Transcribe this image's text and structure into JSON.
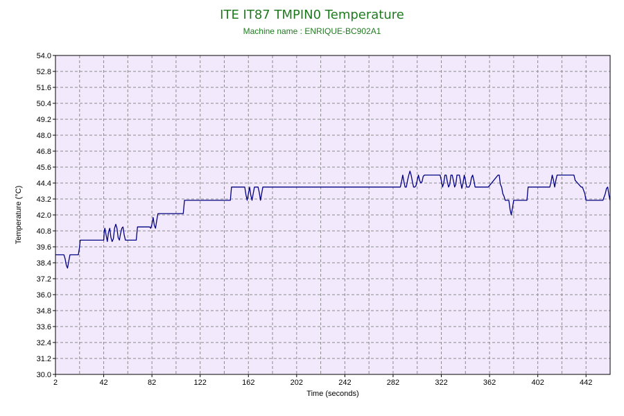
{
  "header": {
    "title": "ITE IT87 TMPIN0 Temperature",
    "subtitle": "Machine name : ENRIQUE-BC902A1"
  },
  "chart_data": {
    "type": "line",
    "title": "ITE IT87 TMPIN0 Temperature",
    "subtitle": "Machine name : ENRIQUE-BC902A1",
    "xlabel": "Time (seconds)",
    "ylabel": "Temperature (°C)",
    "xlim": [
      2,
      462
    ],
    "ylim": [
      30.0,
      54.0
    ],
    "x_ticks": [
      "2",
      "42",
      "82",
      "122",
      "162",
      "202",
      "242",
      "282",
      "322",
      "362",
      "402",
      "442"
    ],
    "y_ticks": [
      "30.0",
      "31.2",
      "32.4",
      "33.6",
      "34.8",
      "36.0",
      "37.2",
      "38.4",
      "39.6",
      "40.8",
      "42.0",
      "43.2",
      "44.4",
      "45.6",
      "46.8",
      "48.0",
      "49.2",
      "50.4",
      "51.6",
      "52.8",
      "54.0"
    ],
    "grid": true,
    "colors": {
      "line": "#000080",
      "plot_background": "#f3e9fd",
      "title": "#1f7a1f"
    },
    "series": [
      {
        "x": [
          2,
          9,
          10,
          11,
          12,
          13,
          14,
          15,
          21,
          22,
          22.5,
          42,
          42.5,
          43,
          44,
          45,
          46,
          47,
          48,
          49,
          50,
          51,
          52,
          53,
          54,
          55,
          56,
          57,
          58,
          59,
          60,
          62,
          64,
          66,
          69,
          70,
          80,
          81,
          82,
          83,
          84,
          85,
          86,
          87,
          88,
          89,
          108,
          109,
          147,
          148,
          159,
          160,
          161,
          162,
          163,
          164,
          165,
          166,
          167,
          168,
          169,
          170,
          171,
          172,
          173,
          174,
          175,
          176,
          177,
          178,
          288,
          289,
          290,
          291,
          292,
          293,
          294,
          295,
          296,
          297,
          298,
          299,
          300,
          301,
          302,
          303,
          304,
          305,
          306,
          307,
          308,
          309,
          310,
          320,
          321,
          322,
          323,
          324,
          325,
          326,
          327,
          328,
          329,
          330,
          331,
          332,
          333,
          334,
          335,
          336,
          337,
          338,
          339,
          340,
          341,
          342,
          343,
          344,
          345,
          346,
          347,
          348,
          349,
          350,
          360,
          361,
          369,
          370,
          371,
          372,
          373,
          374,
          375,
          376,
          377,
          378,
          379,
          380,
          381,
          382,
          383,
          393,
          394,
          412,
          413,
          414,
          415,
          416,
          417,
          418,
          419,
          432,
          433,
          438,
          439,
          441,
          442,
          455,
          456,
          458,
          459,
          460,
          461,
          462
        ],
        "y": [
          39.0,
          39.0,
          38.7,
          38.2,
          38.0,
          38.5,
          39.0,
          39.0,
          39.0,
          39.6,
          40.1,
          40.1,
          40.8,
          41.0,
          40.5,
          40.0,
          40.7,
          41.0,
          40.3,
          40.0,
          40.2,
          41.0,
          41.3,
          41.0,
          40.3,
          40.1,
          40.6,
          41.0,
          41.1,
          40.5,
          40.1,
          40.1,
          40.1,
          40.1,
          40.1,
          41.1,
          41.1,
          41.0,
          41.3,
          41.8,
          41.2,
          41.0,
          41.6,
          42.1,
          42.1,
          42.1,
          42.1,
          43.1,
          43.1,
          44.1,
          44.1,
          43.5,
          43.1,
          43.6,
          44.1,
          43.5,
          43.1,
          43.6,
          44.1,
          44.1,
          44.1,
          44.1,
          43.7,
          43.1,
          43.6,
          44.1,
          44.1,
          44.1,
          44.1,
          44.1,
          44.1,
          44.5,
          45.0,
          44.5,
          44.1,
          44.1,
          44.6,
          45.0,
          45.3,
          45.0,
          44.5,
          44.1,
          44.1,
          44.2,
          44.6,
          45.0,
          44.6,
          44.4,
          44.5,
          44.9,
          45.0,
          45.0,
          45.0,
          45.0,
          45.0,
          44.6,
          44.1,
          44.4,
          45.0,
          45.0,
          44.5,
          44.1,
          44.3,
          45.0,
          45.0,
          44.6,
          44.1,
          44.3,
          45.0,
          45.0,
          45.0,
          44.5,
          44.0,
          44.4,
          45.0,
          44.6,
          44.1,
          44.1,
          44.1,
          44.3,
          44.8,
          45.0,
          44.6,
          44.1,
          44.1,
          44.1,
          45.0,
          45.0,
          44.3,
          44.1,
          43.6,
          43.4,
          43.1,
          43.1,
          43.1,
          43.1,
          42.4,
          42.0,
          42.5,
          43.1,
          43.1,
          43.1,
          44.1,
          44.1,
          44.5,
          45.0,
          44.6,
          44.1,
          44.6,
          45.0,
          45.0,
          45.0,
          44.6,
          44.1,
          44.1,
          43.6,
          43.1,
          43.1,
          43.1,
          43.6,
          44.0,
          44.1,
          43.5,
          43.1
        ]
      }
    ]
  }
}
